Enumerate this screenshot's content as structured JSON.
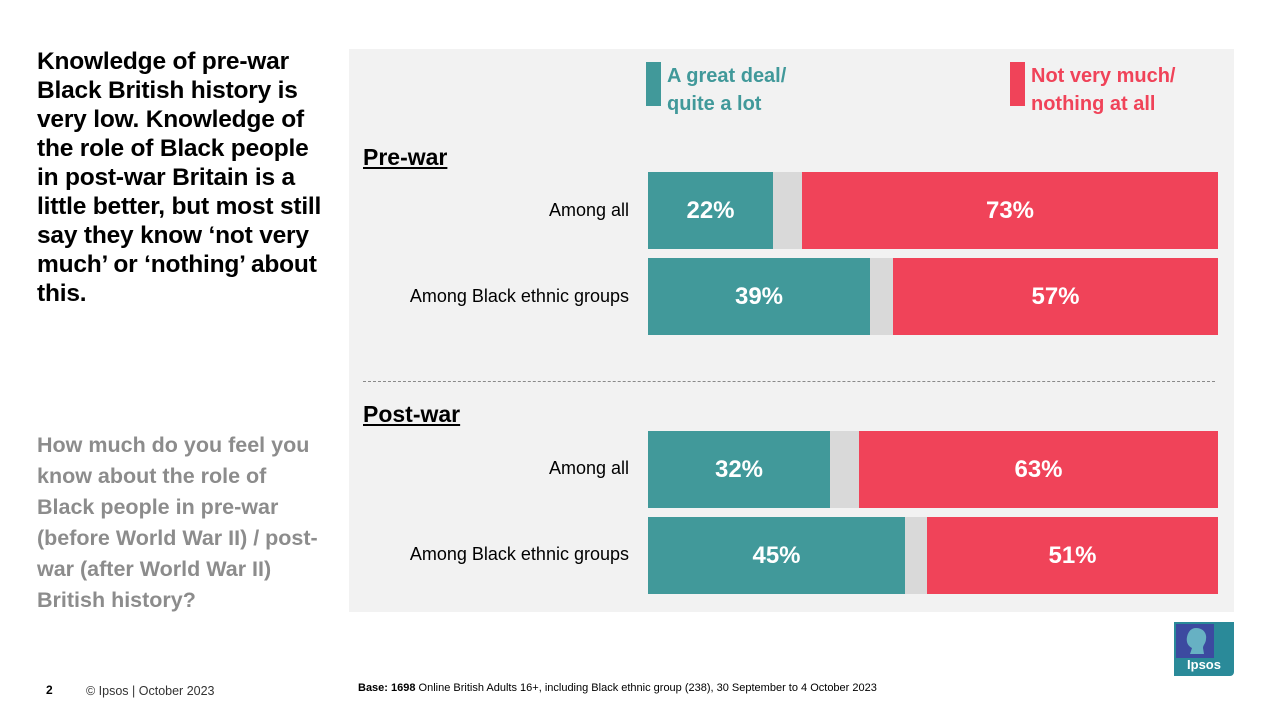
{
  "headline": "Knowledge of pre-war Black British history is very low. Knowledge of the role of Black people in post-war Britain is a little better, but most still say they know ‘not very much’ or ‘nothing’ about this.",
  "question": "How much do you feel you know about the role of Black people in pre-war (before World War II) / post-war (after World War II) British history?",
  "colors": {
    "positive": "#41999a",
    "neutral": "#d9d9d9",
    "negative": "#f04359",
    "panel": "#f2f2f2"
  },
  "footer": {
    "page_number": "2",
    "copyright": "© Ipsos | October 2023",
    "base_bold": "Base: 1698",
    "base_text": " Online British Adults 16+, including Black ethnic group (238), 30 September to 4 October 2023",
    "logo_text": "Ipsos"
  },
  "chart_data": {
    "type": "bar",
    "orientation": "horizontal-stacked",
    "legend": [
      {
        "name": "A great deal/ quite a lot",
        "line1": "A great deal/",
        "line2": "quite a lot",
        "color": "#41999a"
      },
      {
        "name": "Not very much/ nothing at all",
        "line1": "Not very much/",
        "line2": "nothing at all",
        "color": "#f04359"
      }
    ],
    "sections": [
      {
        "title": "Pre-war",
        "rows": [
          {
            "label": "Among all",
            "great_deal": 22,
            "not_much": 73
          },
          {
            "label": "Among Black ethnic groups",
            "great_deal": 39,
            "not_much": 57
          }
        ]
      },
      {
        "title": "Post-war",
        "rows": [
          {
            "label": "Among all",
            "great_deal": 32,
            "not_much": 63
          },
          {
            "label": "Among Black ethnic groups",
            "great_deal": 45,
            "not_much": 51
          }
        ]
      }
    ],
    "value_format": "{v}%",
    "scale_max": 100
  }
}
